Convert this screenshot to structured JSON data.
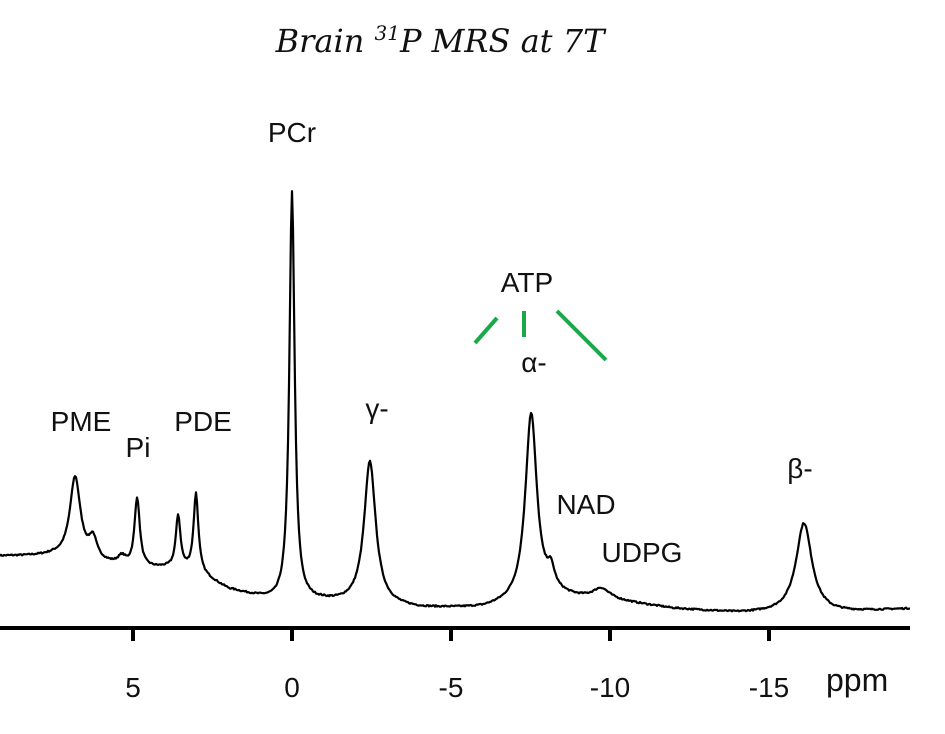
{
  "chart_data": {
    "type": "line",
    "title_main": "Brain ",
    "title_sup": "31",
    "title_rest": "P MRS at 7T",
    "xlabel": "ppm",
    "xlim": [
      9.2,
      -19.4
    ],
    "x_reversed": true,
    "x_ticks": [
      5,
      0,
      -5,
      -10,
      -15
    ],
    "x_tick_labels": [
      "5",
      "0",
      "-5",
      "-10",
      "-15"
    ],
    "grid": false,
    "line_color": "#000000",
    "annotation_color": "#1aa84a",
    "peaks": [
      {
        "ppm": 6.82,
        "intensity": 20,
        "hwhm": 0.2
      },
      {
        "ppm": 6.26,
        "intensity": 5,
        "hwhm": 0.15
      },
      {
        "ppm": 5.35,
        "intensity": 2,
        "hwhm": 0.15
      },
      {
        "ppm": 4.87,
        "intensity": 17,
        "hwhm": 0.1
      },
      {
        "ppm": 3.58,
        "intensity": 13,
        "hwhm": 0.09
      },
      {
        "ppm": 3.02,
        "intensity": 19,
        "hwhm": 0.09
      },
      {
        "ppm": 0.0,
        "intensity": 100,
        "hwhm": 0.1
      },
      {
        "ppm": -2.45,
        "intensity": 35,
        "hwhm": 0.22
      },
      {
        "ppm": -7.52,
        "intensity": 46,
        "hwhm": 0.22
      },
      {
        "ppm": -8.14,
        "intensity": 5,
        "hwhm": 0.15
      },
      {
        "ppm": -9.72,
        "intensity": 2.5,
        "hwhm": 0.3
      },
      {
        "ppm": -16.1,
        "intensity": 22,
        "hwhm": 0.3
      }
    ],
    "baseline": [
      [
        9.2,
        17
      ],
      [
        7.5,
        17
      ],
      [
        5.8,
        15
      ],
      [
        5,
        14
      ],
      [
        4,
        14
      ],
      [
        3,
        13
      ],
      [
        2,
        9
      ],
      [
        1,
        7
      ],
      [
        0.5,
        6
      ],
      [
        -1,
        6
      ],
      [
        -4,
        4.5
      ],
      [
        -6,
        4.5
      ],
      [
        -8.5,
        7
      ],
      [
        -10,
        6.5
      ],
      [
        -12,
        4.5
      ],
      [
        -14,
        3.5
      ],
      [
        -17,
        3.5
      ],
      [
        -19.4,
        4.5
      ]
    ],
    "annotations": {
      "pcr": "PCr",
      "pme": "PME",
      "pi": "Pi",
      "pde": "PDE",
      "gamma": "γ-",
      "atp": "ATP",
      "alpha": "α-",
      "nad": "NAD",
      "udpg": "UDPG",
      "beta": "β-"
    }
  }
}
